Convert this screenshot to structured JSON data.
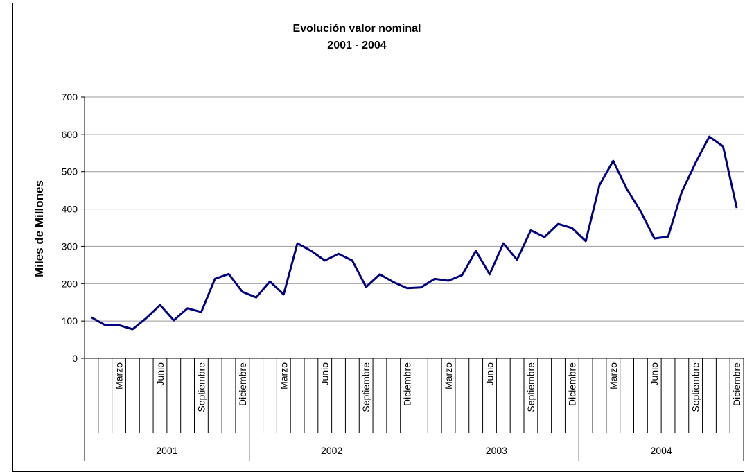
{
  "chart_data": {
    "type": "line",
    "title": "Evolución valor nominal",
    "subtitle": "2001 - 2004",
    "y_label": "Miles de Millones",
    "categories": [
      null,
      null,
      "Marzo",
      null,
      null,
      "Junio",
      null,
      null,
      "Septiembre",
      null,
      null,
      "Diciembre",
      null,
      null,
      "Marzo",
      null,
      null,
      "Junio",
      null,
      null,
      "Septiembre",
      null,
      null,
      "Diciembre",
      null,
      null,
      "Marzo",
      null,
      null,
      "Junio",
      null,
      null,
      "Septiembre",
      null,
      null,
      "Diciembre",
      null,
      null,
      "Marzo",
      null,
      null,
      "Junio",
      null,
      null,
      "Septiembre",
      null,
      null,
      "Diciembre"
    ],
    "groups": [
      "2001",
      "2002",
      "2003",
      "2004"
    ],
    "values": [
      110,
      89,
      89,
      78,
      108,
      143,
      102,
      134,
      124,
      213,
      226,
      178,
      163,
      206,
      171,
      308,
      288,
      262,
      280,
      262,
      191,
      225,
      204,
      188,
      190,
      213,
      208,
      223,
      288,
      225,
      308,
      264,
      343,
      325,
      360,
      349,
      314,
      464,
      529,
      453,
      394,
      321,
      326,
      446,
      524,
      594,
      568,
      403
    ],
    "color": "#000080",
    "ylim": [
      0,
      700
    ],
    "yticks": [
      0,
      100,
      200,
      300,
      400,
      500,
      600,
      700
    ],
    "grid": true
  }
}
